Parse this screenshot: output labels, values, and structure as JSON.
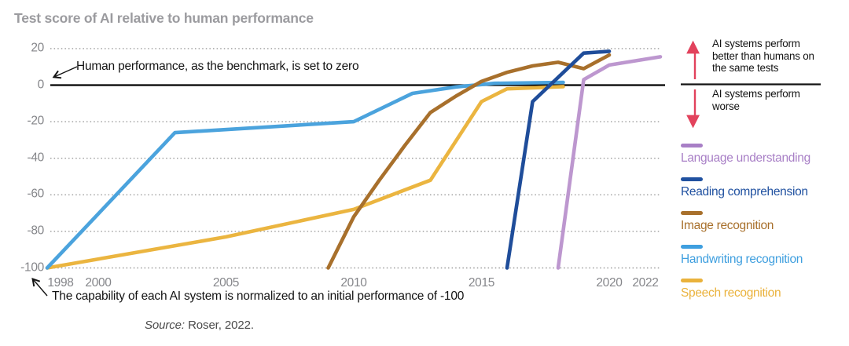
{
  "chart_data": {
    "type": "line",
    "title": "Test score of AI relative to human performance",
    "x_ticks": [
      1998,
      2000,
      2005,
      2010,
      2015,
      2020,
      2022
    ],
    "y_ticks": [
      20,
      0,
      -20,
      -40,
      -60,
      -80,
      -100
    ],
    "xlim": [
      1997.9,
      2022.6
    ],
    "ylim": [
      -107,
      23
    ],
    "grid": "horizontal dotted",
    "baseline_value": 0,
    "series": [
      {
        "name": "Language understanding",
        "color": "#bd97cf",
        "points": [
          [
            2018,
            -100
          ],
          [
            2019,
            3
          ],
          [
            2020,
            11
          ],
          [
            2022,
            15.5
          ]
        ]
      },
      {
        "name": "Reading comprehension",
        "color": "#1f4d9a",
        "points": [
          [
            2016,
            -100
          ],
          [
            2017,
            -9
          ],
          [
            2019,
            17.5
          ],
          [
            2020,
            18.5
          ]
        ]
      },
      {
        "name": "Image recognition",
        "color": "#a8702c",
        "points": [
          [
            2009,
            -100
          ],
          [
            2010,
            -72
          ],
          [
            2011,
            -52
          ],
          [
            2012,
            -33
          ],
          [
            2013,
            -15
          ],
          [
            2014,
            -6
          ],
          [
            2015,
            2
          ],
          [
            2016,
            7
          ],
          [
            2017,
            10.5
          ],
          [
            2018,
            12.5
          ],
          [
            2019,
            9
          ],
          [
            2020,
            16.5
          ]
        ]
      },
      {
        "name": "Handwriting recognition",
        "color": "#4ba3dd",
        "points": [
          [
            1998,
            -100
          ],
          [
            2003,
            -26
          ],
          [
            2010,
            -20
          ],
          [
            2012.3,
            -4.5
          ],
          [
            2014,
            -1
          ],
          [
            2015.5,
            1
          ],
          [
            2018.2,
            1.5
          ]
        ]
      },
      {
        "name": "Speech recognition",
        "color": "#ebb540",
        "points": [
          [
            1998,
            -100
          ],
          [
            2005,
            -83
          ],
          [
            2010,
            -68
          ],
          [
            2013,
            -52
          ],
          [
            2015,
            -9
          ],
          [
            2016,
            -2
          ],
          [
            2018.2,
            -0.8
          ]
        ]
      }
    ]
  },
  "annotations": {
    "zero_note": "Human performance, as the benchmark, is set to zero",
    "normalize_note": "The capability of each AI system is normalized to an initial performance of -100",
    "source_prefix": "Source:",
    "source_text": " Roser, 2022."
  },
  "right_panel": {
    "better_text": "AI systems perform better than humans on the same tests",
    "worse_text": "AI systems perform worse",
    "arrow_color": "#e2425c"
  },
  "legend": {
    "items": [
      {
        "label": "Language understanding",
        "color": "#a87fc6"
      },
      {
        "label": "Reading comprehension",
        "color": "#2051a0"
      },
      {
        "label": "Image recognition",
        "color": "#a8702c"
      },
      {
        "label": "Handwriting recognition",
        "color": "#3f9fdf"
      },
      {
        "label": "Speech recognition",
        "color": "#eab23c"
      }
    ]
  }
}
